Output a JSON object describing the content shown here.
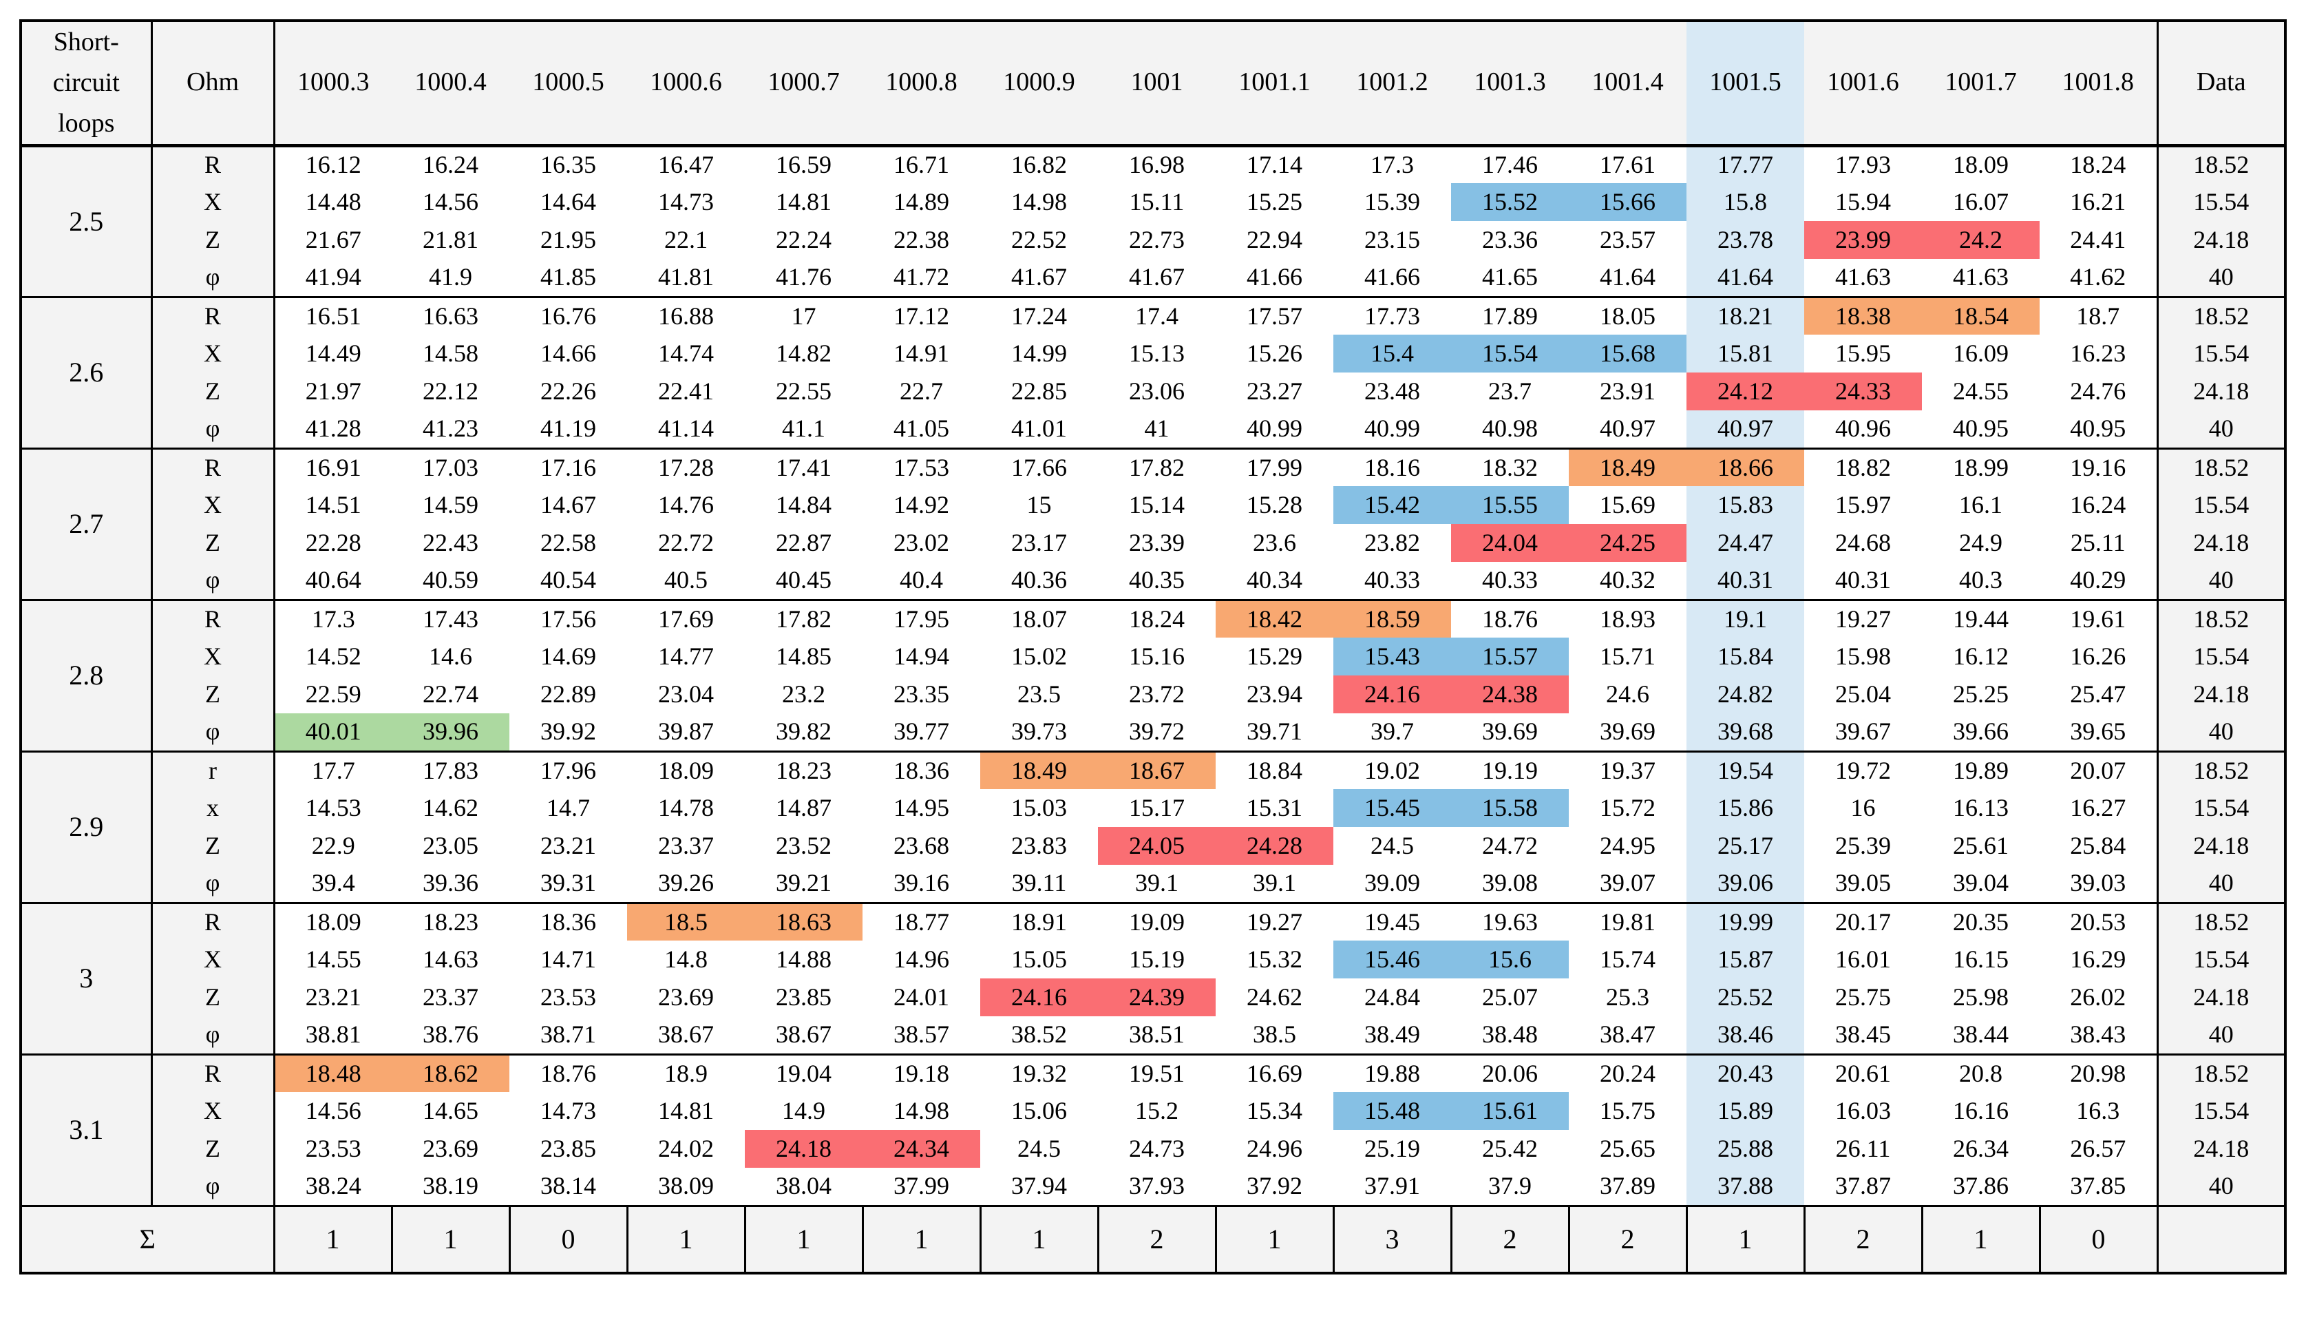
{
  "colors": {
    "blue": "#86C0E4",
    "red": "#FA6E73",
    "orange": "#F8A871",
    "green": "#ACD9A0",
    "column_highlight": "#D8E9F5",
    "panel_gray": "#F3F3F3",
    "border": "#000000"
  },
  "table": {
    "header": {
      "corner": "Short-circuit loops",
      "ohm": "Ohm",
      "columns": [
        "1000.3",
        "1000.4",
        "1000.5",
        "1000.6",
        "1000.7",
        "1000.8",
        "1000.9",
        "1001",
        "1001.1",
        "1001.2",
        "1001.3",
        "1001.4",
        "1001.5",
        "1001.6",
        "1001.7",
        "1001.8"
      ],
      "data": "Data",
      "highlighted_column": "1001.5"
    },
    "groups": [
      {
        "loop": "2.5",
        "rows": [
          {
            "label": "R",
            "values": [
              "16.12",
              "16.24",
              "16.35",
              "16.47",
              "16.59",
              "16.71",
              "16.82",
              "16.98",
              "17.14",
              "17.3",
              "17.46",
              "17.61",
              "17.77",
              "17.93",
              "18.09",
              "18.24"
            ],
            "data": "18.52",
            "highlights": {}
          },
          {
            "label": "X",
            "values": [
              "14.48",
              "14.56",
              "14.64",
              "14.73",
              "14.81",
              "14.89",
              "14.98",
              "15.11",
              "15.25",
              "15.39",
              "15.52",
              "15.66",
              "15.8",
              "15.94",
              "16.07",
              "16.21"
            ],
            "data": "15.54",
            "highlights": {
              "10": "blue",
              "11": "blue"
            }
          },
          {
            "label": "Z",
            "values": [
              "21.67",
              "21.81",
              "21.95",
              "22.1",
              "22.24",
              "22.38",
              "22.52",
              "22.73",
              "22.94",
              "23.15",
              "23.36",
              "23.57",
              "23.78",
              "23.99",
              "24.2",
              "24.41"
            ],
            "data": "24.18",
            "highlights": {
              "13": "red",
              "14": "red"
            }
          },
          {
            "label": "φ",
            "values": [
              "41.94",
              "41.9",
              "41.85",
              "41.81",
              "41.76",
              "41.72",
              "41.67",
              "41.67",
              "41.66",
              "41.66",
              "41.65",
              "41.64",
              "41.64",
              "41.63",
              "41.63",
              "41.62"
            ],
            "data": "40",
            "highlights": {}
          }
        ]
      },
      {
        "loop": "2.6",
        "rows": [
          {
            "label": "R",
            "values": [
              "16.51",
              "16.63",
              "16.76",
              "16.88",
              "17",
              "17.12",
              "17.24",
              "17.4",
              "17.57",
              "17.73",
              "17.89",
              "18.05",
              "18.21",
              "18.38",
              "18.54",
              "18.7"
            ],
            "data": "18.52",
            "highlights": {
              "13": "orange",
              "14": "orange"
            }
          },
          {
            "label": "X",
            "values": [
              "14.49",
              "14.58",
              "14.66",
              "14.74",
              "14.82",
              "14.91",
              "14.99",
              "15.13",
              "15.26",
              "15.4",
              "15.54",
              "15.68",
              "15.81",
              "15.95",
              "16.09",
              "16.23"
            ],
            "data": "15.54",
            "highlights": {
              "9": "blue",
              "10": "blue",
              "11": "blue"
            }
          },
          {
            "label": "Z",
            "values": [
              "21.97",
              "22.12",
              "22.26",
              "22.41",
              "22.55",
              "22.7",
              "22.85",
              "23.06",
              "23.27",
              "23.48",
              "23.7",
              "23.91",
              "24.12",
              "24.33",
              "24.55",
              "24.76"
            ],
            "data": "24.18",
            "highlights": {
              "12": "red",
              "13": "red"
            }
          },
          {
            "label": "φ",
            "values": [
              "41.28",
              "41.23",
              "41.19",
              "41.14",
              "41.1",
              "41.05",
              "41.01",
              "41",
              "40.99",
              "40.99",
              "40.98",
              "40.97",
              "40.97",
              "40.96",
              "40.95",
              "40.95"
            ],
            "data": "40",
            "highlights": {}
          }
        ]
      },
      {
        "loop": "2.7",
        "rows": [
          {
            "label": "R",
            "values": [
              "16.91",
              "17.03",
              "17.16",
              "17.28",
              "17.41",
              "17.53",
              "17.66",
              "17.82",
              "17.99",
              "18.16",
              "18.32",
              "18.49",
              "18.66",
              "18.82",
              "18.99",
              "19.16"
            ],
            "data": "18.52",
            "highlights": {
              "11": "orange",
              "12": "orange"
            }
          },
          {
            "label": "X",
            "values": [
              "14.51",
              "14.59",
              "14.67",
              "14.76",
              "14.84",
              "14.92",
              "15",
              "15.14",
              "15.28",
              "15.42",
              "15.55",
              "15.69",
              "15.83",
              "15.97",
              "16.1",
              "16.24"
            ],
            "data": "15.54",
            "highlights": {
              "9": "blue",
              "10": "blue"
            }
          },
          {
            "label": "Z",
            "values": [
              "22.28",
              "22.43",
              "22.58",
              "22.72",
              "22.87",
              "23.02",
              "23.17",
              "23.39",
              "23.6",
              "23.82",
              "24.04",
              "24.25",
              "24.47",
              "24.68",
              "24.9",
              "25.11"
            ],
            "data": "24.18",
            "highlights": {
              "10": "red",
              "11": "red"
            }
          },
          {
            "label": "φ",
            "values": [
              "40.64",
              "40.59",
              "40.54",
              "40.5",
              "40.45",
              "40.4",
              "40.36",
              "40.35",
              "40.34",
              "40.33",
              "40.33",
              "40.32",
              "40.31",
              "40.31",
              "40.3",
              "40.29"
            ],
            "data": "40",
            "highlights": {}
          }
        ]
      },
      {
        "loop": "2.8",
        "rows": [
          {
            "label": "R",
            "values": [
              "17.3",
              "17.43",
              "17.56",
              "17.69",
              "17.82",
              "17.95",
              "18.07",
              "18.24",
              "18.42",
              "18.59",
              "18.76",
              "18.93",
              "19.1",
              "19.27",
              "19.44",
              "19.61"
            ],
            "data": "18.52",
            "highlights": {
              "8": "orange",
              "9": "orange"
            }
          },
          {
            "label": "X",
            "values": [
              "14.52",
              "14.6",
              "14.69",
              "14.77",
              "14.85",
              "14.94",
              "15.02",
              "15.16",
              "15.29",
              "15.43",
              "15.57",
              "15.71",
              "15.84",
              "15.98",
              "16.12",
              "16.26"
            ],
            "data": "15.54",
            "highlights": {
              "9": "blue",
              "10": "blue"
            }
          },
          {
            "label": "Z",
            "values": [
              "22.59",
              "22.74",
              "22.89",
              "23.04",
              "23.2",
              "23.35",
              "23.5",
              "23.72",
              "23.94",
              "24.16",
              "24.38",
              "24.6",
              "24.82",
              "25.04",
              "25.25",
              "25.47"
            ],
            "data": "24.18",
            "highlights": {
              "9": "red",
              "10": "red"
            }
          },
          {
            "label": "φ",
            "values": [
              "40.01",
              "39.96",
              "39.92",
              "39.87",
              "39.82",
              "39.77",
              "39.73",
              "39.72",
              "39.71",
              "39.7",
              "39.69",
              "39.69",
              "39.68",
              "39.67",
              "39.66",
              "39.65"
            ],
            "data": "40",
            "highlights": {
              "0": "green",
              "1": "green"
            }
          }
        ]
      },
      {
        "loop": "2.9",
        "rows": [
          {
            "label": "r",
            "values": [
              "17.7",
              "17.83",
              "17.96",
              "18.09",
              "18.23",
              "18.36",
              "18.49",
              "18.67",
              "18.84",
              "19.02",
              "19.19",
              "19.37",
              "19.54",
              "19.72",
              "19.89",
              "20.07"
            ],
            "data": "18.52",
            "highlights": {
              "6": "orange",
              "7": "orange"
            }
          },
          {
            "label": "x",
            "values": [
              "14.53",
              "14.62",
              "14.7",
              "14.78",
              "14.87",
              "14.95",
              "15.03",
              "15.17",
              "15.31",
              "15.45",
              "15.58",
              "15.72",
              "15.86",
              "16",
              "16.13",
              "16.27"
            ],
            "data": "15.54",
            "highlights": {
              "9": "blue",
              "10": "blue"
            }
          },
          {
            "label": "Z",
            "values": [
              "22.9",
              "23.05",
              "23.21",
              "23.37",
              "23.52",
              "23.68",
              "23.83",
              "24.05",
              "24.28",
              "24.5",
              "24.72",
              "24.95",
              "25.17",
              "25.39",
              "25.61",
              "25.84"
            ],
            "data": "24.18",
            "highlights": {
              "7": "red",
              "8": "red"
            }
          },
          {
            "label": "φ",
            "values": [
              "39.4",
              "39.36",
              "39.31",
              "39.26",
              "39.21",
              "39.16",
              "39.11",
              "39.1",
              "39.1",
              "39.09",
              "39.08",
              "39.07",
              "39.06",
              "39.05",
              "39.04",
              "39.03"
            ],
            "data": "40",
            "highlights": {}
          }
        ]
      },
      {
        "loop": "3",
        "rows": [
          {
            "label": "R",
            "values": [
              "18.09",
              "18.23",
              "18.36",
              "18.5",
              "18.63",
              "18.77",
              "18.91",
              "19.09",
              "19.27",
              "19.45",
              "19.63",
              "19.81",
              "19.99",
              "20.17",
              "20.35",
              "20.53"
            ],
            "data": "18.52",
            "highlights": {
              "3": "orange",
              "4": "orange"
            }
          },
          {
            "label": "X",
            "values": [
              "14.55",
              "14.63",
              "14.71",
              "14.8",
              "14.88",
              "14.96",
              "15.05",
              "15.19",
              "15.32",
              "15.46",
              "15.6",
              "15.74",
              "15.87",
              "16.01",
              "16.15",
              "16.29"
            ],
            "data": "15.54",
            "highlights": {
              "9": "blue",
              "10": "blue"
            }
          },
          {
            "label": "Z",
            "values": [
              "23.21",
              "23.37",
              "23.53",
              "23.69",
              "23.85",
              "24.01",
              "24.16",
              "24.39",
              "24.62",
              "24.84",
              "25.07",
              "25.3",
              "25.52",
              "25.75",
              "25.98",
              "26.02"
            ],
            "data": "24.18",
            "highlights": {
              "6": "red",
              "7": "red"
            }
          },
          {
            "label": "φ",
            "values": [
              "38.81",
              "38.76",
              "38.71",
              "38.67",
              "38.67",
              "38.57",
              "38.52",
              "38.51",
              "38.5",
              "38.49",
              "38.48",
              "38.47",
              "38.46",
              "38.45",
              "38.44",
              "38.43"
            ],
            "data": "40",
            "highlights": {}
          }
        ]
      },
      {
        "loop": "3.1",
        "rows": [
          {
            "label": "R",
            "values": [
              "18.48",
              "18.62",
              "18.76",
              "18.9",
              "19.04",
              "19.18",
              "19.32",
              "19.51",
              "16.69",
              "19.88",
              "20.06",
              "20.24",
              "20.43",
              "20.61",
              "20.8",
              "20.98"
            ],
            "data": "18.52",
            "highlights": {
              "0": "orange",
              "1": "orange"
            }
          },
          {
            "label": "X",
            "values": [
              "14.56",
              "14.65",
              "14.73",
              "14.81",
              "14.9",
              "14.98",
              "15.06",
              "15.2",
              "15.34",
              "15.48",
              "15.61",
              "15.75",
              "15.89",
              "16.03",
              "16.16",
              "16.3"
            ],
            "data": "15.54",
            "highlights": {
              "9": "blue",
              "10": "blue"
            }
          },
          {
            "label": "Z",
            "values": [
              "23.53",
              "23.69",
              "23.85",
              "24.02",
              "24.18",
              "24.34",
              "24.5",
              "24.73",
              "24.96",
              "25.19",
              "25.42",
              "25.65",
              "25.88",
              "26.11",
              "26.34",
              "26.57"
            ],
            "data": "24.18",
            "highlights": {
              "4": "red",
              "5": "red"
            }
          },
          {
            "label": "φ",
            "values": [
              "38.24",
              "38.19",
              "38.14",
              "38.09",
              "38.04",
              "37.99",
              "37.94",
              "37.93",
              "37.92",
              "37.91",
              "37.9",
              "37.89",
              "37.88",
              "37.87",
              "37.86",
              "37.85"
            ],
            "data": "40",
            "highlights": {}
          }
        ]
      }
    ],
    "sum_row": {
      "label": "Σ",
      "values": [
        "1",
        "1",
        "0",
        "1",
        "1",
        "1",
        "1",
        "2",
        "1",
        "3",
        "2",
        "2",
        "1",
        "2",
        "1",
        "0"
      ],
      "data": ""
    }
  }
}
